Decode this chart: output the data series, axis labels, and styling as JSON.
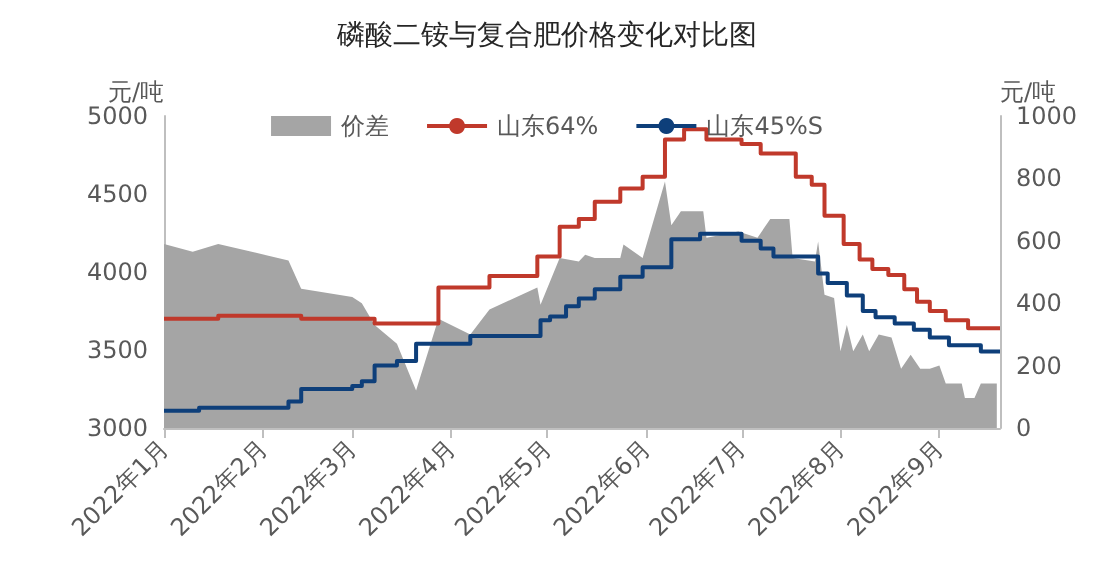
{
  "chart_data": {
    "type": "step",
    "title": "磷酸二铵与复合肥价格变化对比图",
    "ylabel": "元/吨",
    "y2label": "元/吨",
    "xlim": [
      "2022-01-01",
      "2022-09-20"
    ],
    "xticks": [
      {
        "value": "2022-01-01",
        "label": "2022年1月"
      },
      {
        "value": "2022-02-01",
        "label": "2022年2月"
      },
      {
        "value": "2022-03-01",
        "label": "2022年3月"
      },
      {
        "value": "2022-04-01",
        "label": "2022年4月"
      },
      {
        "value": "2022-05-01",
        "label": "2022年5月"
      },
      {
        "value": "2022-06-01",
        "label": "2022年6月"
      },
      {
        "value": "2022-07-01",
        "label": "2022年7月"
      },
      {
        "value": "2022-08-01",
        "label": "2022年8月"
      },
      {
        "value": "2022-09-01",
        "label": "2022年9月"
      }
    ],
    "ylim": [
      3000,
      5000
    ],
    "yticks": [
      3000,
      3500,
      4000,
      4500,
      5000
    ],
    "y2lim": [
      0,
      1000
    ],
    "y2ticks": [
      0,
      200,
      400,
      600,
      800,
      1000
    ],
    "legend": "top",
    "grid": false,
    "series": [
      {
        "name": "价差",
        "type": "area",
        "axis": "y2",
        "color": "#a5a5a5",
        "x": [
          "2022-01-01",
          "2022-01-10",
          "2022-01-18",
          "2022-02-09",
          "2022-02-13",
          "2022-03-01",
          "2022-03-04",
          "2022-03-08",
          "2022-03-15",
          "2022-03-21",
          "2022-03-28",
          "2022-04-07",
          "2022-04-13",
          "2022-04-28",
          "2022-04-29",
          "2022-05-05",
          "2022-05-11",
          "2022-05-13",
          "2022-05-16",
          "2022-05-24",
          "2022-05-25",
          "2022-05-31",
          "2022-06-07",
          "2022-06-09",
          "2022-06-12",
          "2022-06-19",
          "2022-06-20",
          "2022-06-30",
          "2022-07-06",
          "2022-07-10",
          "2022-07-16",
          "2022-07-17",
          "2022-07-24",
          "2022-07-25",
          "2022-07-27",
          "2022-07-30",
          "2022-08-01",
          "2022-08-03",
          "2022-08-05",
          "2022-08-08",
          "2022-08-10",
          "2022-08-13",
          "2022-08-17",
          "2022-08-20",
          "2022-08-23",
          "2022-08-26",
          "2022-08-29",
          "2022-09-01",
          "2022-09-03",
          "2022-09-08",
          "2022-09-09",
          "2022-09-12",
          "2022-09-14",
          "2022-09-19"
        ],
        "values": [
          590,
          565,
          590,
          537,
          446,
          420,
          400,
          330,
          270,
          120,
          350,
          300,
          380,
          450,
          395,
          545,
          534,
          555,
          545,
          545,
          588,
          545,
          790,
          650,
          695,
          695,
          610,
          630,
          610,
          670,
          670,
          545,
          534,
          598,
          427,
          417,
          246,
          330,
          246,
          300,
          246,
          300,
          290,
          190,
          235,
          190,
          190,
          200,
          143,
          143,
          96,
          96,
          143,
          143
        ]
      },
      {
        "name": "山东64%",
        "color": "#c0392b",
        "x": [
          "2022-01-01",
          "2022-01-18",
          "2022-02-13",
          "2022-03-08",
          "2022-03-28",
          "2022-04-13",
          "2022-04-28",
          "2022-05-05",
          "2022-05-11",
          "2022-05-16",
          "2022-05-24",
          "2022-05-31",
          "2022-06-07",
          "2022-06-13",
          "2022-06-20",
          "2022-07-01",
          "2022-07-07",
          "2022-07-18",
          "2022-07-23",
          "2022-07-27",
          "2022-08-02",
          "2022-08-07",
          "2022-08-11",
          "2022-08-16",
          "2022-08-21",
          "2022-08-25",
          "2022-08-29",
          "2022-09-03",
          "2022-09-10",
          "2022-09-20"
        ],
        "values": [
          3700,
          3720,
          3700,
          3670,
          3900,
          3975,
          4100,
          4290,
          4340,
          4450,
          4535,
          4610,
          4850,
          4915,
          4850,
          4820,
          4760,
          4610,
          4560,
          4360,
          4180,
          4080,
          4020,
          3980,
          3890,
          3810,
          3750,
          3690,
          3640,
          3640
        ]
      },
      {
        "name": "山东45%S",
        "color": "#0e3f7a",
        "x": [
          "2022-01-01",
          "2022-01-12",
          "2022-02-09",
          "2022-02-13",
          "2022-03-01",
          "2022-03-04",
          "2022-03-08",
          "2022-03-15",
          "2022-03-21",
          "2022-04-07",
          "2022-04-29",
          "2022-05-02",
          "2022-05-07",
          "2022-05-11",
          "2022-05-16",
          "2022-05-24",
          "2022-05-31",
          "2022-06-09",
          "2022-06-18",
          "2022-07-01",
          "2022-07-07",
          "2022-07-11",
          "2022-07-25",
          "2022-07-28",
          "2022-08-03",
          "2022-08-08",
          "2022-08-12",
          "2022-08-18",
          "2022-08-24",
          "2022-08-29",
          "2022-09-04",
          "2022-09-14",
          "2022-09-20"
        ],
        "values": [
          3110,
          3130,
          3170,
          3250,
          3270,
          3300,
          3400,
          3430,
          3540,
          3590,
          3690,
          3715,
          3780,
          3830,
          3890,
          3970,
          4030,
          4210,
          4245,
          4200,
          4150,
          4100,
          3990,
          3930,
          3850,
          3750,
          3710,
          3670,
          3630,
          3580,
          3530,
          3490,
          3490
        ]
      }
    ]
  }
}
